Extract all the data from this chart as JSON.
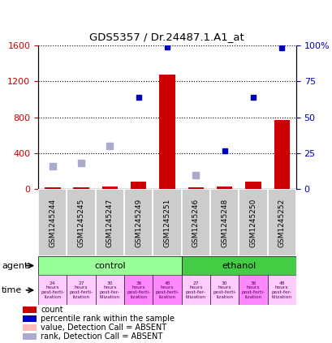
{
  "title": "GDS5357 / Dr.24487.1.A1_at",
  "samples": [
    "GSM1245244",
    "GSM1245245",
    "GSM1245247",
    "GSM1245249",
    "GSM1245251",
    "GSM1245246",
    "GSM1245248",
    "GSM1245250",
    "GSM1245252"
  ],
  "red_bars": [
    20,
    25,
    30,
    90,
    1270,
    20,
    30,
    90,
    770
  ],
  "blue_squares_pct": [
    null,
    null,
    null,
    64,
    99,
    null,
    27,
    64,
    98
  ],
  "light_blue_squares": [
    260,
    290,
    480,
    null,
    null,
    160,
    null,
    null,
    null
  ],
  "ylim_left": [
    0,
    1600
  ],
  "yticks_left": [
    0,
    400,
    800,
    1200,
    1600
  ],
  "yticks_right": [
    0,
    25,
    50,
    75,
    100
  ],
  "ytick_labels_right": [
    "0",
    "25",
    "50",
    "75",
    "100%"
  ],
  "control_count": 5,
  "ethanol_count": 4,
  "time_labels": [
    "24\nhours\npost-ferti-\nlization",
    "27\nhours\npost-ferti-\nlization",
    "30\nhours\npost-fer-\ntilization",
    "36\nhours\npost-ferti-\nlization",
    "48\nhours\npost-ferti-\nlization",
    "27\nhours\npost-fer-\ntilization",
    "30\nhours\npost-ferti-\nlization",
    "36\nhours\npost-ferti-\nlization",
    "48\nhours\npost-fer-\ntilization"
  ],
  "time_colors": [
    "#ffccff",
    "#ffccff",
    "#ffccff",
    "#ff88ff",
    "#ff88ff",
    "#ffccff",
    "#ffccff",
    "#ff88ff",
    "#ffccff"
  ],
  "agent_control_color": "#99ff99",
  "agent_ethanol_color": "#44cc44",
  "sample_bg_color": "#cccccc",
  "red_color": "#cc0000",
  "blue_color": "#0000bb",
  "light_pink_color": "#ffbbbb",
  "light_blue_color": "#aaaacc",
  "legend_items": [
    {
      "color": "#cc0000",
      "label": "count"
    },
    {
      "color": "#0000bb",
      "label": "percentile rank within the sample"
    },
    {
      "color": "#ffbbbb",
      "label": "value, Detection Call = ABSENT"
    },
    {
      "color": "#aaaacc",
      "label": "rank, Detection Call = ABSENT"
    }
  ]
}
